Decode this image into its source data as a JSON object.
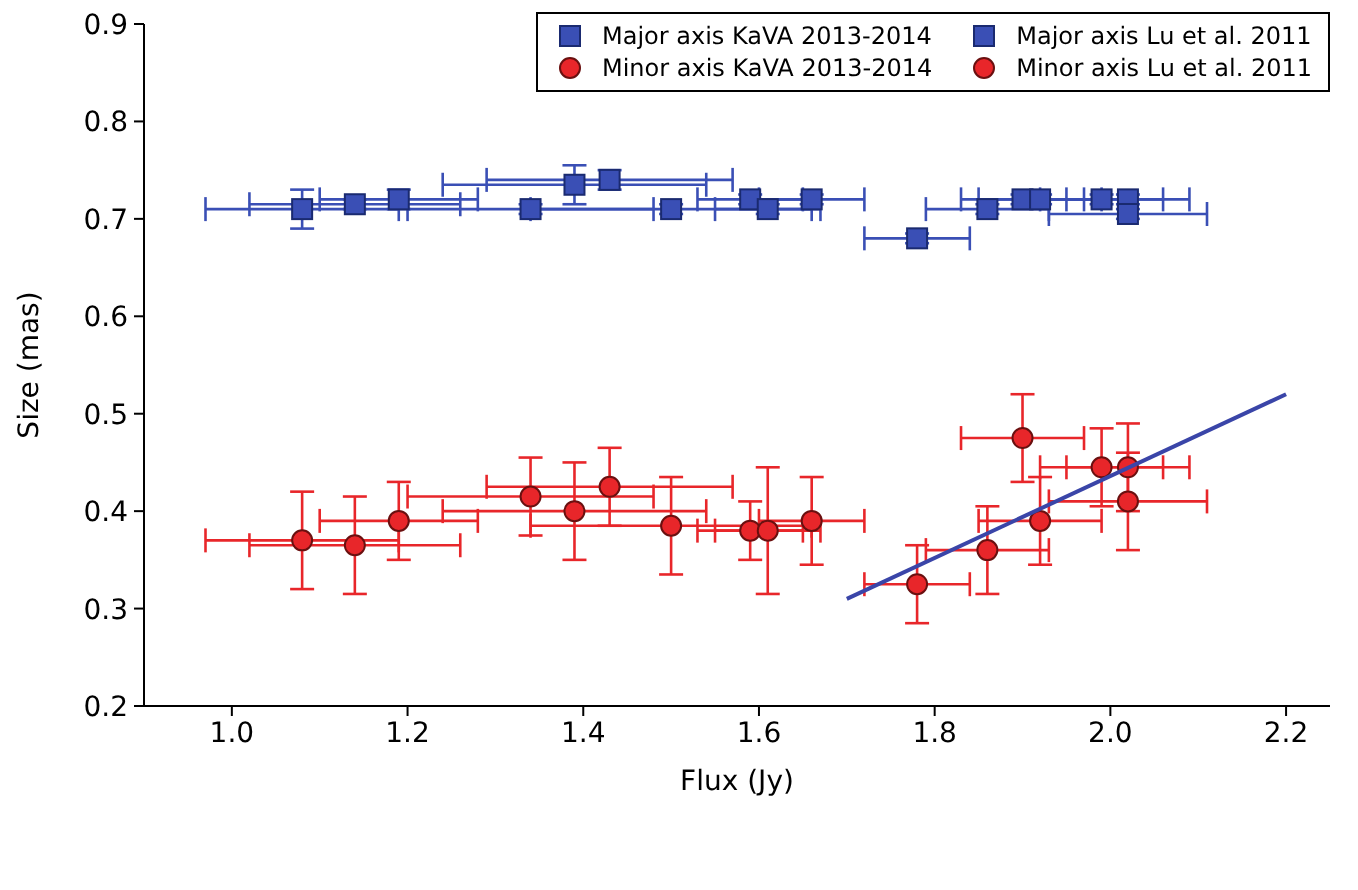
{
  "chart_data": {
    "type": "scatter",
    "xlabel": "Flux (Jy)",
    "ylabel": "Size (mas)",
    "xlim": [
      0.9,
      2.25
    ],
    "xticks": [
      {
        "value": 1,
        "label": "1.0"
      },
      1.2,
      1.4,
      1.6,
      1.8,
      {
        "value": 2,
        "label": "2.0"
      },
      2.2
    ],
    "ylim": [
      0.2,
      0.9
    ],
    "yticks": [
      0.2,
      0.3,
      0.4,
      0.5,
      0.6,
      0.7,
      0.8,
      0.9
    ],
    "grid": false,
    "legend": "top right",
    "series": [
      {
        "name": "Major axis KaVA 2013-2014",
        "color": "#3a4fb5",
        "marker": "square",
        "x": [
          1.08,
          1.14,
          1.19,
          1.34,
          1.39,
          1.43,
          1.5
        ],
        "values": [
          0.71,
          0.715,
          0.72,
          0.71,
          0.735,
          0.74,
          0.71
        ],
        "errors": [
          0.02,
          0.005,
          0.01,
          0.005,
          0.02,
          0.01,
          0.005
        ],
        "xerrors": [
          0.11,
          0.12,
          0.09,
          0.14,
          0.15,
          0.14,
          0.16
        ]
      },
      {
        "name": "Minor axis KaVA 2013-2014",
        "color": "#e8262a",
        "marker": "circle",
        "x": [
          1.08,
          1.14,
          1.19,
          1.34,
          1.39,
          1.43,
          1.5
        ],
        "values": [
          0.37,
          0.365,
          0.39,
          0.415,
          0.4,
          0.425,
          0.385
        ],
        "errors": [
          0.05,
          0.05,
          0.04,
          0.04,
          0.05,
          0.04,
          0.05
        ],
        "xerrors": [
          0.11,
          0.12,
          0.09,
          0.14,
          0.15,
          0.14,
          0.16
        ]
      },
      {
        "name": "Major axis Lu et al. 2011",
        "color": "#3a4fb5",
        "marker": "square",
        "x": [
          1.59,
          1.61,
          1.66,
          1.78,
          1.86,
          1.9,
          1.92,
          1.99,
          2.02,
          2.02
        ],
        "values": [
          0.72,
          0.71,
          0.72,
          0.68,
          0.71,
          0.72,
          0.72,
          0.72,
          0.72,
          0.705
        ],
        "errors": [
          0.005,
          0.005,
          0.005,
          0.005,
          0.005,
          0.005,
          0.005,
          0.005,
          0.005,
          0.005
        ],
        "xerrors": [
          0.06,
          0.06,
          0.06,
          0.06,
          0.07,
          0.07,
          0.07,
          0.07,
          0.07,
          0.09
        ]
      },
      {
        "name": "Minor axis Lu et al. 2011",
        "color": "#e8262a",
        "marker": "circle",
        "x": [
          1.59,
          1.61,
          1.66,
          1.78,
          1.86,
          1.9,
          1.92,
          1.99,
          2.02,
          2.02
        ],
        "values": [
          0.38,
          0.38,
          0.39,
          0.325,
          0.36,
          0.475,
          0.39,
          0.445,
          0.445,
          0.41
        ],
        "errors": [
          0.03,
          0.065,
          0.045,
          0.04,
          0.045,
          0.045,
          0.045,
          0.04,
          0.045,
          0.05
        ],
        "xerrors": [
          0.06,
          0.06,
          0.06,
          0.06,
          0.07,
          0.07,
          0.07,
          0.07,
          0.07,
          0.09
        ]
      },
      {
        "type": "line",
        "color": "#3a45a8",
        "marker": "none",
        "x": [
          1.7,
          2.2
        ],
        "values": [
          0.31,
          0.52
        ]
      }
    ]
  }
}
